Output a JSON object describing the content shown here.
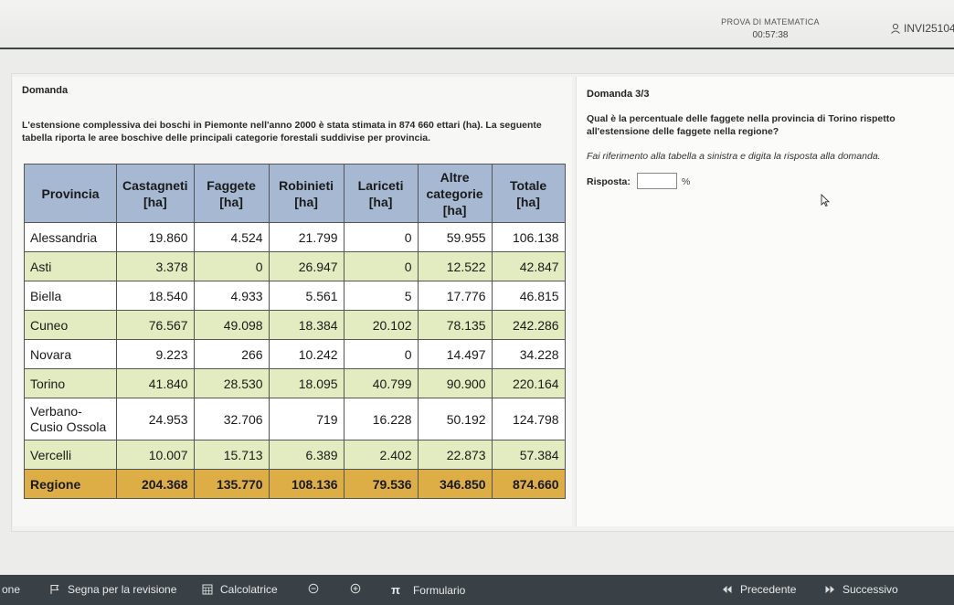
{
  "header": {
    "exam_title": "PROVA DI MATEMATICA",
    "timer": "00:57:38",
    "user_id": "INVI25104"
  },
  "question": {
    "label": "Domanda",
    "text": "L'estensione complessiva dei boschi in Piemonte nell'anno 2000 è stata stimata in 874 660 ettari (ha). La seguente tabella riporta le aree boschive delle principali categorie forestali suddivise per provincia."
  },
  "table": {
    "headers": [
      "Provincia",
      "Castagneti [ha]",
      "Faggete [ha]",
      "Robinieti [ha]",
      "Lariceti [ha]",
      "Altre categorie [ha]",
      "Totale [ha]"
    ],
    "rows": [
      [
        "Alessandria",
        "19.860",
        "4.524",
        "21.799",
        "0",
        "59.955",
        "106.138"
      ],
      [
        "Asti",
        "3.378",
        "0",
        "26.947",
        "0",
        "12.522",
        "42.847"
      ],
      [
        "Biella",
        "18.540",
        "4.933",
        "5.561",
        "5",
        "17.776",
        "46.815"
      ],
      [
        "Cuneo",
        "76.567",
        "49.098",
        "18.384",
        "20.102",
        "78.135",
        "242.286"
      ],
      [
        "Novara",
        "9.223",
        "266",
        "10.242",
        "0",
        "14.497",
        "34.228"
      ],
      [
        "Torino",
        "41.840",
        "28.530",
        "18.095",
        "40.799",
        "90.900",
        "220.164"
      ],
      [
        "Verbano-Cusio Ossola",
        "24.953",
        "32.706",
        "719",
        "16.228",
        "50.192",
        "124.798"
      ],
      [
        "Vercelli",
        "10.007",
        "15.713",
        "6.389",
        "2.402",
        "22.873",
        "57.384"
      ]
    ],
    "total_row": [
      "Regione",
      "204.368",
      "135.770",
      "108.136",
      "79.536",
      "346.850",
      "874.660"
    ],
    "colors": {
      "header": "#a6b8d2",
      "even_row": "#e3ebc0",
      "total_row": "#dcae45"
    }
  },
  "answer_panel": {
    "number": "Domanda 3/3",
    "question": "Qual è la percentuale delle faggete nella provincia di Torino rispetto all'estensione delle faggete nella regione?",
    "hint": "Fai riferimento alla tabella a sinistra e digita la risposta alla domanda.",
    "answer_label": "Risposta:",
    "answer_value": "",
    "unit": "%"
  },
  "toolbar": {
    "left_cut_label": "one",
    "flag_label": "Segna per la revisione",
    "calculator_label": "Calcolatrice",
    "zoom_out_icon": "zoom-out-icon",
    "zoom_in_icon": "zoom-in-icon",
    "formulas_label": "Formulario",
    "previous_label": "Precedente",
    "next_label": "Successivo"
  }
}
